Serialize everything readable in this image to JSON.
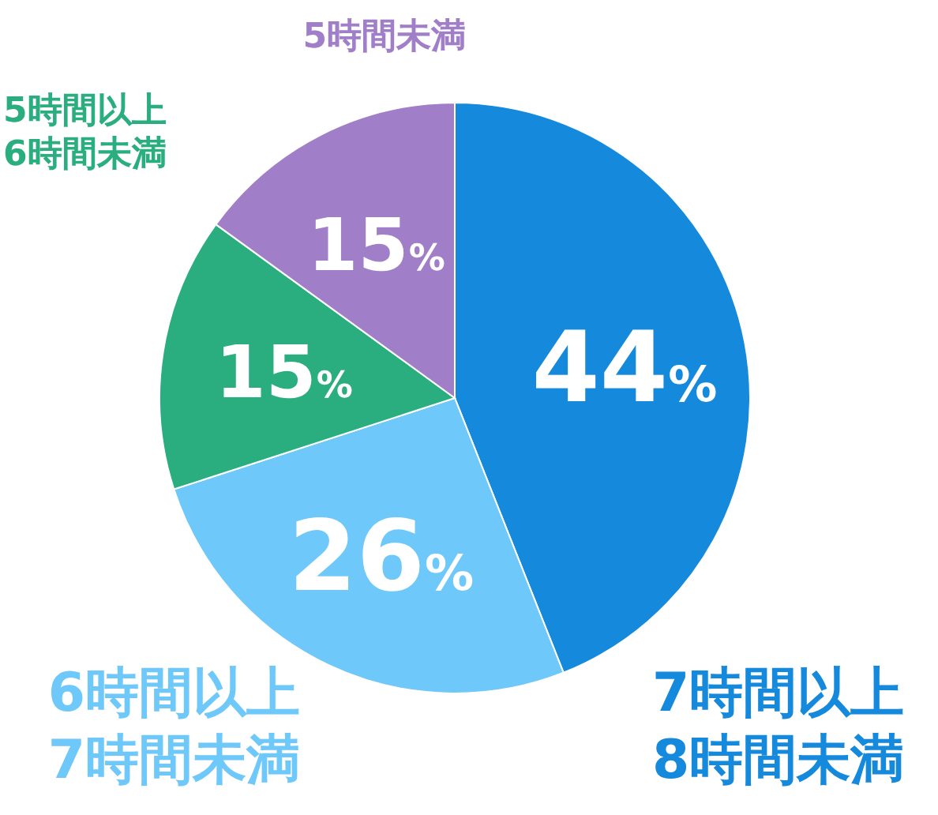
{
  "chart_data": {
    "type": "pie",
    "categories": [
      "7時間以上\n8時間未満",
      "6時間以上\n7時間未満",
      "5時間以上\n6時間未満",
      "5時間未満"
    ],
    "values": [
      44,
      26,
      15,
      15
    ],
    "colors": [
      "#1589dc",
      "#6ec8f9",
      "#2aae80",
      "#a07fc8"
    ],
    "value_labels": [
      "44%",
      "26%",
      "15%",
      "15%"
    ]
  }
}
